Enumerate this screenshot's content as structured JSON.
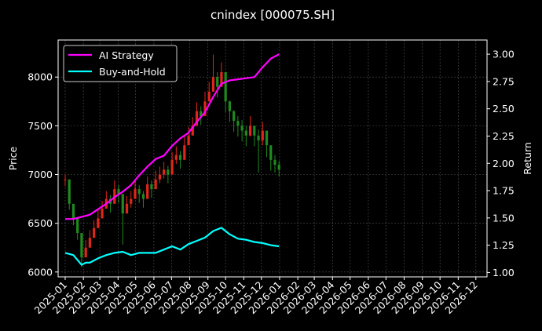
{
  "chart_data": {
    "type": "line",
    "title": "cnindex [000075.SH]",
    "xlabel": "",
    "ylabel": "Price",
    "y2label": "Return",
    "x_ticks": [
      "2025-01",
      "2025-02",
      "2025-03",
      "2025-04",
      "2025-05",
      "2025-06",
      "2025-07",
      "2025-08",
      "2025-09",
      "2025-10",
      "2025-11",
      "2025-12",
      "2026-01",
      "2026-02",
      "2026-03",
      "2026-04",
      "2026-05",
      "2026-06",
      "2026-07",
      "2026-08",
      "2026-09",
      "2026-10",
      "2026-11",
      "2026-12"
    ],
    "xlim": [
      "2024-12-20",
      "2026-12-20"
    ],
    "ylim": [
      5950,
      8380
    ],
    "yticks": [
      6000,
      6500,
      7000,
      7500,
      8000
    ],
    "y2lim": [
      0.96,
      3.13
    ],
    "y2ticks": [
      "1.00",
      "1.25",
      "1.50",
      "1.75",
      "2.00",
      "2.25",
      "2.50",
      "2.75",
      "3.00"
    ],
    "grid": true,
    "legend_position": "top-left",
    "colors": {
      "background": "#000000",
      "up": "#e0261b",
      "down": "#1f8a1f",
      "ai": "#ff00ff",
      "bh": "#00ffff",
      "grid": "#555555"
    },
    "price_series": {
      "x": [
        "2025-01-01",
        "2025-01-08",
        "2025-01-15",
        "2025-01-22",
        "2025-01-29",
        "2025-02-05",
        "2025-02-12",
        "2025-02-19",
        "2025-02-26",
        "2025-03-05",
        "2025-03-12",
        "2025-03-19",
        "2025-03-26",
        "2025-04-02",
        "2025-04-09",
        "2025-04-16",
        "2025-04-23",
        "2025-04-30",
        "2025-05-07",
        "2025-05-14",
        "2025-05-21",
        "2025-05-28",
        "2025-06-04",
        "2025-06-11",
        "2025-06-18",
        "2025-06-25",
        "2025-07-02",
        "2025-07-09",
        "2025-07-16",
        "2025-07-23",
        "2025-07-30",
        "2025-08-06",
        "2025-08-13",
        "2025-08-20",
        "2025-08-27",
        "2025-09-03",
        "2025-09-10",
        "2025-09-17",
        "2025-09-24",
        "2025-10-01",
        "2025-10-08",
        "2025-10-15",
        "2025-10-22",
        "2025-10-29",
        "2025-11-05",
        "2025-11-12",
        "2025-11-19",
        "2025-11-26",
        "2025-12-03",
        "2025-12-10",
        "2025-12-17",
        "2025-12-24",
        "2025-12-31"
      ],
      "close": [
        6950,
        6700,
        6550,
        6400,
        6150,
        6250,
        6350,
        6450,
        6550,
        6650,
        6750,
        6700,
        6850,
        6800,
        6600,
        6700,
        6750,
        6850,
        6800,
        6750,
        6900,
        6850,
        6950,
        7000,
        7050,
        7000,
        7150,
        7200,
        7150,
        7300,
        7400,
        7500,
        7650,
        7600,
        7750,
        7850,
        8000,
        7900,
        8050,
        7750,
        7650,
        7550,
        7500,
        7450,
        7400,
        7500,
        7400,
        7350,
        7450,
        7300,
        7150,
        7100,
        7050
      ],
      "high": [
        7000,
        6800,
        6620,
        6480,
        6300,
        6330,
        6430,
        6530,
        6640,
        6730,
        6830,
        6790,
        6940,
        6890,
        6720,
        6780,
        6830,
        6940,
        6890,
        6830,
        6980,
        6940,
        7040,
        7080,
        7130,
        7090,
        7230,
        7290,
        7240,
        7390,
        7490,
        7590,
        7740,
        7700,
        7850,
        7950,
        8230,
        8050,
        8150,
        7900,
        7760,
        7660,
        7600,
        7560,
        7500,
        7600,
        7500,
        7460,
        7540,
        7400,
        7260,
        7200,
        7140
      ],
      "low": [
        6880,
        6640,
        6480,
        6330,
        6050,
        6160,
        6260,
        6360,
        6460,
        6560,
        6660,
        6610,
        6760,
        6710,
        6280,
        6610,
        6660,
        6760,
        6710,
        6660,
        6810,
        6760,
        6860,
        6910,
        6960,
        6910,
        7060,
        7110,
        7060,
        7210,
        7310,
        7410,
        7560,
        7510,
        7660,
        7760,
        7870,
        7790,
        7950,
        7640,
        7540,
        7440,
        7390,
        7340,
        7290,
        7390,
        7290,
        7020,
        7300,
        7180,
        7040,
        7020,
        6980
      ]
    },
    "series": [
      {
        "name": "AI Strategy",
        "x": [
          "2025-01-01",
          "2025-01-15",
          "2025-01-29",
          "2025-02-12",
          "2025-02-26",
          "2025-03-12",
          "2025-03-26",
          "2025-04-09",
          "2025-04-23",
          "2025-05-07",
          "2025-05-21",
          "2025-06-04",
          "2025-06-18",
          "2025-07-02",
          "2025-07-16",
          "2025-07-30",
          "2025-08-13",
          "2025-08-27",
          "2025-09-10",
          "2025-09-24",
          "2025-10-08",
          "2025-10-22",
          "2025-11-05",
          "2025-11-19",
          "2025-12-03",
          "2025-12-17",
          "2025-12-31"
        ],
        "values": [
          1.49,
          1.49,
          1.51,
          1.53,
          1.58,
          1.63,
          1.69,
          1.74,
          1.8,
          1.89,
          1.97,
          2.04,
          2.07,
          2.16,
          2.23,
          2.28,
          2.38,
          2.47,
          2.61,
          2.73,
          2.76,
          2.77,
          2.78,
          2.79,
          2.88,
          2.96,
          3.0
        ]
      },
      {
        "name": "Buy-and-Hold",
        "x": [
          "2025-01-01",
          "2025-01-15",
          "2025-01-29",
          "2025-02-05",
          "2025-02-12",
          "2025-02-26",
          "2025-03-12",
          "2025-03-26",
          "2025-04-09",
          "2025-04-23",
          "2025-05-07",
          "2025-05-21",
          "2025-06-04",
          "2025-06-18",
          "2025-07-02",
          "2025-07-16",
          "2025-07-30",
          "2025-08-13",
          "2025-08-27",
          "2025-09-10",
          "2025-09-24",
          "2025-10-08",
          "2025-10-22",
          "2025-11-05",
          "2025-11-19",
          "2025-12-03",
          "2025-12-17",
          "2025-12-31"
        ],
        "values": [
          1.18,
          1.16,
          1.07,
          1.09,
          1.09,
          1.13,
          1.16,
          1.18,
          1.19,
          1.16,
          1.18,
          1.18,
          1.18,
          1.21,
          1.24,
          1.21,
          1.26,
          1.29,
          1.32,
          1.38,
          1.41,
          1.35,
          1.31,
          1.3,
          1.28,
          1.27,
          1.25,
          1.24
        ]
      }
    ]
  }
}
